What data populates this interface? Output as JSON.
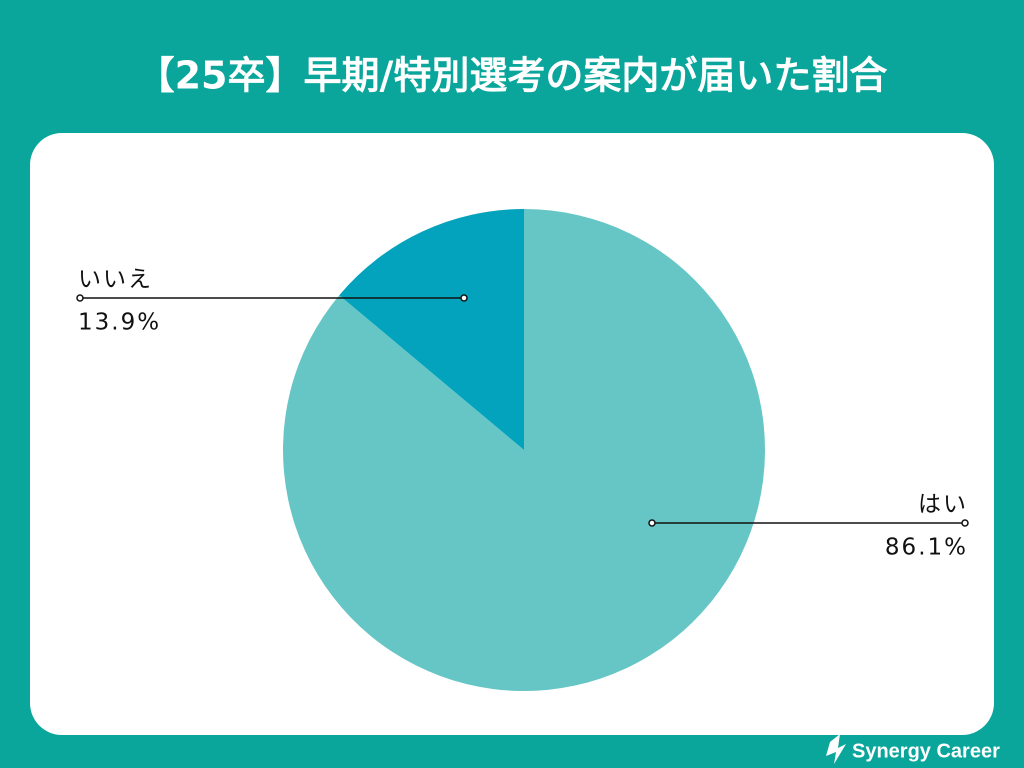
{
  "chart_data": {
    "type": "pie",
    "title": "【25卒】早期/特別選考の案内が届いた割合",
    "categories": [
      "はい",
      "いいえ"
    ],
    "values": [
      86.1,
      13.9
    ],
    "value_labels": [
      "86.1%",
      "13.9%"
    ],
    "colors": [
      "#66c6c5",
      "#03a3bd"
    ]
  },
  "footer": {
    "brand": "Synergy Career"
  }
}
